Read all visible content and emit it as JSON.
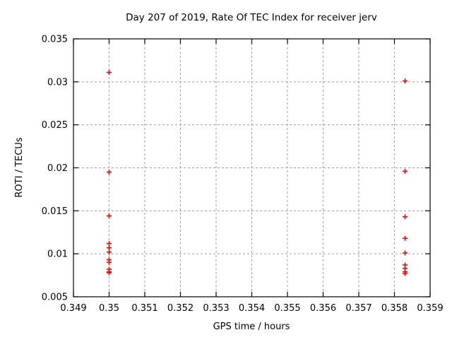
{
  "page": {
    "background": "#ffffff"
  },
  "chart_data": {
    "type": "scatter",
    "title": "Day 207 of 2019, Rate Of TEC Index for receiver jerv",
    "xlabel": "GPS time / hours",
    "ylabel": "ROTI / TECUs",
    "xlim": [
      0.349,
      0.359
    ],
    "ylim": [
      0.005,
      0.035
    ],
    "grid": true,
    "legend": null,
    "marker": "plus",
    "colors": {
      "points": "#ff0000",
      "axis": "#000000",
      "grid": "#9e9e9e",
      "text": "#000000"
    },
    "x_ticks": {
      "values": [
        0.349,
        0.35,
        0.351,
        0.352,
        0.353,
        0.354,
        0.355,
        0.356,
        0.357,
        0.358,
        0.359
      ],
      "labels": [
        "0.349",
        "0.35",
        "0.351",
        "0.352",
        "0.353",
        "0.354",
        "0.355",
        "0.356",
        "0.357",
        "0.358",
        "0.359"
      ]
    },
    "y_ticks": {
      "values": [
        0.005,
        0.01,
        0.015,
        0.02,
        0.025,
        0.03,
        0.035
      ],
      "labels": [
        "0.005",
        "0.01",
        "0.015",
        "0.02",
        "0.025",
        "0.03",
        "0.035"
      ]
    },
    "series": [
      {
        "name": "ROTI",
        "color": "#ff0000",
        "marker": "plus",
        "points": [
          [
            0.35,
            0.0311
          ],
          [
            0.35,
            0.0195
          ],
          [
            0.35,
            0.0144
          ],
          [
            0.35,
            0.0112
          ],
          [
            0.35,
            0.0107
          ],
          [
            0.35,
            0.0102
          ],
          [
            0.35,
            0.0093
          ],
          [
            0.35,
            0.009
          ],
          [
            0.35,
            0.0082
          ],
          [
            0.35,
            0.0079
          ],
          [
            0.35,
            0.0078
          ],
          [
            0.3583,
            0.0301
          ],
          [
            0.3583,
            0.0196
          ],
          [
            0.3583,
            0.0143
          ],
          [
            0.3583,
            0.0118
          ],
          [
            0.3583,
            0.0101
          ],
          [
            0.3583,
            0.0087
          ],
          [
            0.3583,
            0.0083
          ],
          [
            0.3583,
            0.0079
          ],
          [
            0.3583,
            0.0077
          ]
        ]
      }
    ]
  }
}
